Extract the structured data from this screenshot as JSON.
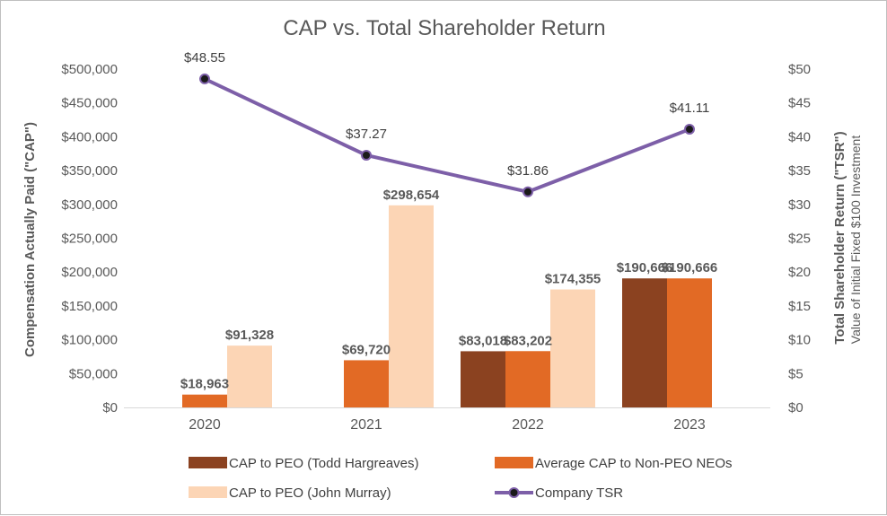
{
  "chart_data": {
    "type": "bar",
    "title": "CAP vs. Total Shareholder Return",
    "categories": [
      "2020",
      "2021",
      "2022",
      "2023"
    ],
    "ylabel": "Compensation Actually Paid (\"CAP\")",
    "y2label": "Total Shareholder Return (\"TSR\")",
    "y2sublabel": "Value of Initial Fixed $100 Investment",
    "ylim": [
      0,
      500000
    ],
    "y2lim": [
      0,
      50
    ],
    "yticks": [
      "$0",
      "$50,000",
      "$100,000",
      "$150,000",
      "$200,000",
      "$250,000",
      "$300,000",
      "$350,000",
      "$400,000",
      "$450,000",
      "$500,000"
    ],
    "y2ticks": [
      "$0",
      "$5",
      "$10",
      "$15",
      "$20",
      "$25",
      "$30",
      "$35",
      "$40",
      "$45",
      "$50"
    ],
    "series": [
      {
        "name": "CAP to PEO (Todd Hargreaves)",
        "kind": "bar",
        "color": "#8B4220",
        "values": [
          null,
          null,
          83018,
          190666
        ],
        "labels": [
          "",
          "",
          "$83,018",
          "$190,666"
        ]
      },
      {
        "name": "Average CAP to Non-PEO NEOs",
        "kind": "bar",
        "color": "#E26A25",
        "values": [
          18963,
          69720,
          83202,
          190666
        ],
        "labels": [
          "$18,963",
          "$69,720",
          "$83,202",
          "$190,666"
        ]
      },
      {
        "name": "CAP to PEO (John Murray)",
        "kind": "bar",
        "color": "#FCD5B5",
        "values": [
          91328,
          298654,
          174355,
          null
        ],
        "labels": [
          "$91,328",
          "$298,654",
          "$174,355",
          ""
        ]
      },
      {
        "name": "Company TSR",
        "kind": "line",
        "axis": "right",
        "color": "#7D5FA8",
        "marker_color": "#1a1a1a",
        "values": [
          48.55,
          37.27,
          31.86,
          41.11
        ],
        "labels": [
          "$48.55",
          "$37.27",
          "$31.86",
          "$41.11"
        ]
      }
    ],
    "legend": [
      {
        "label": "CAP to PEO (Todd Hargreaves)",
        "series": 0
      },
      {
        "label": "Average CAP to Non-PEO NEOs",
        "series": 1
      },
      {
        "label": "CAP to PEO (John Murray)",
        "series": 2
      },
      {
        "label": "Company TSR",
        "series": 3
      }
    ],
    "legend_position": "bottom",
    "grid": false
  }
}
